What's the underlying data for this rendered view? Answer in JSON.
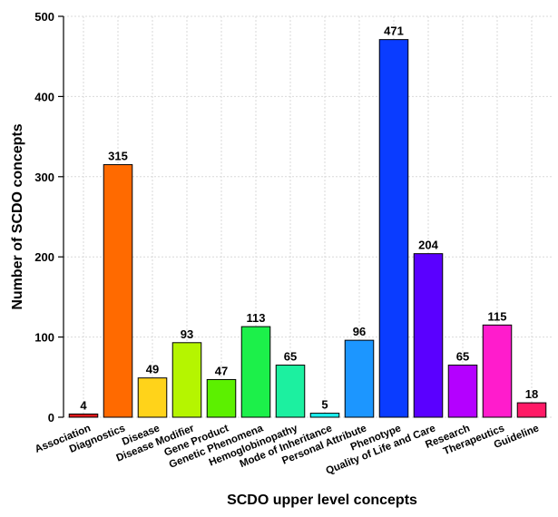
{
  "chart_data": {
    "type": "bar",
    "title": "",
    "xlabel": "SCDO upper level concepts",
    "ylabel": "Number of SCDO concepts",
    "ylim": [
      0,
      500
    ],
    "yticks": [
      0,
      100,
      200,
      300,
      400,
      500
    ],
    "grid": true,
    "categories": [
      "Association",
      "Diagnostics",
      "Disease",
      "Disease Modifier",
      "Gene Product",
      "Genetic Phenomena",
      "Hemoglobinopathy",
      "Mode of Inheritance",
      "Personal Attribute",
      "Phenotype",
      "Quality of Life and Care",
      "Research",
      "Therapeutics",
      "Guideline"
    ],
    "values": [
      4,
      315,
      49,
      93,
      47,
      113,
      65,
      5,
      96,
      471,
      204,
      65,
      115,
      18
    ],
    "colors": [
      "#e0191c",
      "#ff6a00",
      "#ffd31a",
      "#b5f500",
      "#5cf000",
      "#1cf04a",
      "#1cf0a0",
      "#1cf0f0",
      "#1c96ff",
      "#0a3cff",
      "#5a00ff",
      "#b400ff",
      "#ff1ccc",
      "#ff1a66"
    ]
  }
}
